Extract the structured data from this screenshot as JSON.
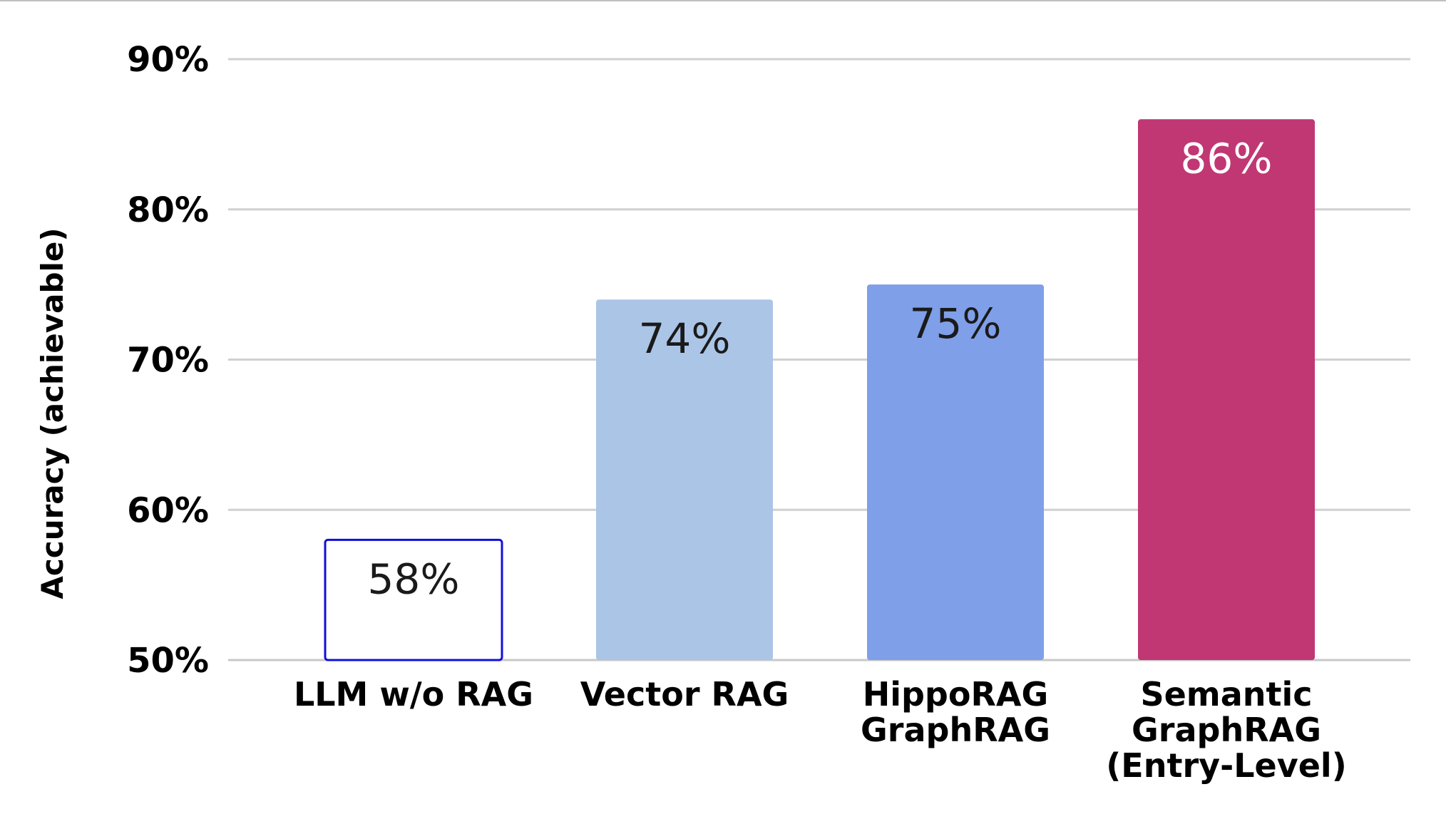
{
  "chart_data": {
    "type": "bar",
    "title": "",
    "xlabel": "",
    "ylabel": "Accuracy (achievable)",
    "categories": [
      [
        "LLM w/o RAG"
      ],
      [
        "Vector RAG"
      ],
      [
        "HippoRAG",
        "GraphRAG"
      ],
      [
        "Semantic",
        "GraphRAG",
        "(Entry-Level)"
      ]
    ],
    "values": [
      58,
      74,
      75,
      86
    ],
    "data_labels": [
      "58%",
      "74%",
      "75%",
      "86%"
    ],
    "ylim": [
      50,
      90
    ],
    "yticks": [
      50,
      60,
      70,
      80,
      90
    ],
    "ytick_labels": [
      "50%",
      "60%",
      "70%",
      "80%",
      "90%"
    ],
    "grid": true,
    "legend": "none",
    "colors": {
      "bar_fills": [
        "#ffffff",
        "#abc5e7",
        "#7f9fe8",
        "#c03773"
      ],
      "bar_strokes": [
        "#1010d8",
        "none",
        "none",
        "none"
      ],
      "label_colors": [
        "#1a1a1a",
        "#1a1a1a",
        "#1a1a1a",
        "#ffffff"
      ],
      "gridline": "#d0d0d0"
    }
  }
}
